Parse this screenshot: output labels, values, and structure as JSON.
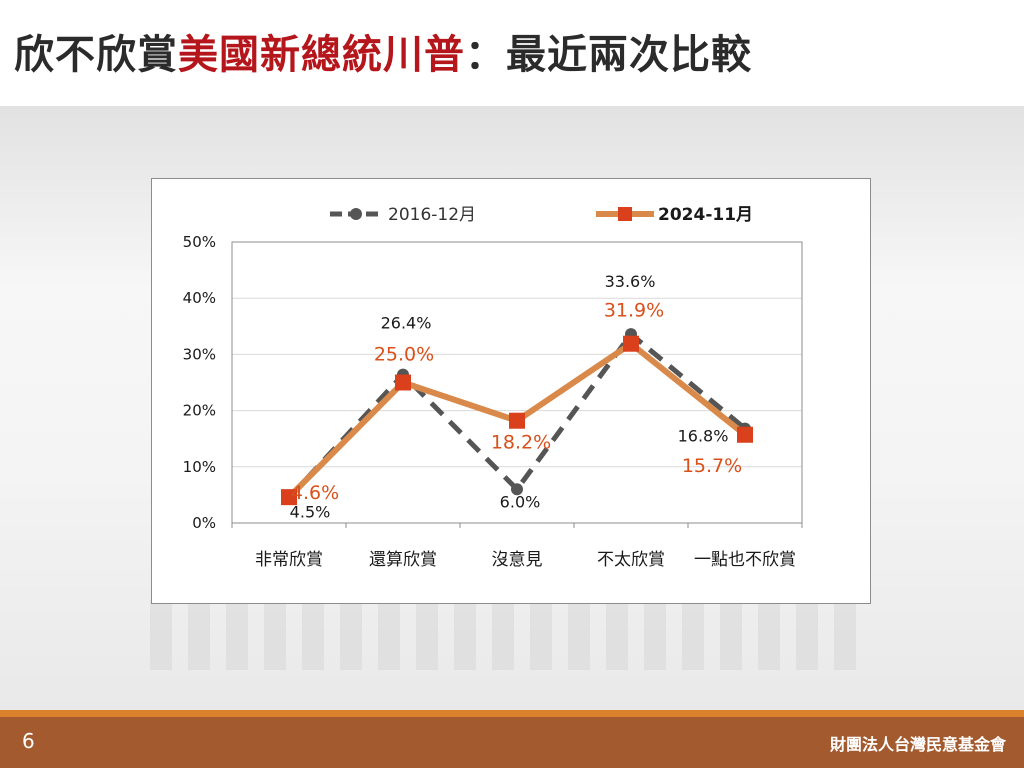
{
  "title": {
    "part1": "欣不欣賞",
    "part2": "美國新總統川普",
    "part3": "：最近兩次比較"
  },
  "footer": {
    "page_number": "6",
    "org": "財團法人台灣民意基金會"
  },
  "colors": {
    "title_text": "#2b2b2b",
    "title_accent": "#b5161b",
    "series_2016": "#555555",
    "series_2024_line": "#d98a4a",
    "series_2024_marker": "#d9401b",
    "label_2024": "#d9501b",
    "footer_bar": "#a35a2e",
    "footer_stripe": "#d9822b"
  },
  "chart_data": {
    "type": "line",
    "categories": [
      "非常欣賞",
      "還算欣賞",
      "沒意見",
      "不太欣賞",
      "一點也不欣賞"
    ],
    "y_ticks": [
      "0%",
      "10%",
      "20%",
      "30%",
      "40%",
      "50%"
    ],
    "ylim": [
      0,
      50
    ],
    "y_unit": "%",
    "grid": true,
    "legend_position": "top",
    "series": [
      {
        "name": "2016-12月",
        "values": [
          4.5,
          26.4,
          6.0,
          33.6,
          16.8
        ],
        "labels": [
          "4.5%",
          "26.4%",
          "6.0%",
          "33.6%",
          "16.8%"
        ],
        "style": "dashed",
        "marker": "circle"
      },
      {
        "name": "2024-11月",
        "values": [
          4.6,
          25.0,
          18.2,
          31.9,
          15.7
        ],
        "labels": [
          "4.6%",
          "25.0%",
          "18.2%",
          "31.9%",
          "15.7%"
        ],
        "style": "solid",
        "marker": "square"
      }
    ]
  }
}
